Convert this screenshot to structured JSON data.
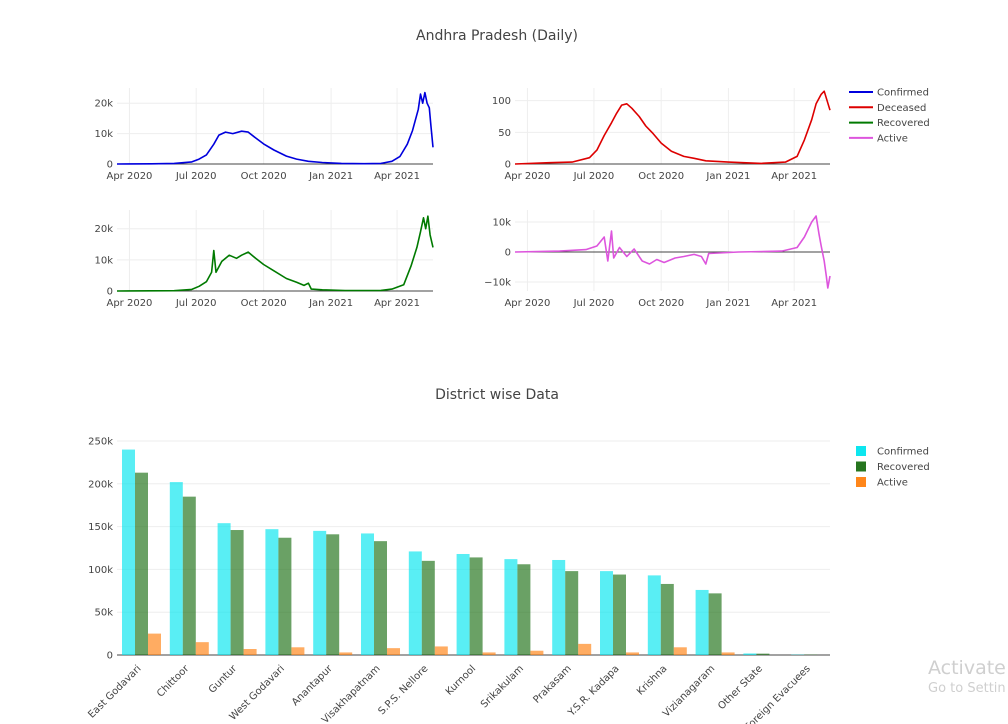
{
  "chart_data": [
    {
      "type": "line",
      "title": "Andhra Pradesh (Daily)",
      "x_range": [
        "2020-03-15",
        "2021-05-20"
      ],
      "x_ticks": [
        "Apr 2020",
        "Jul 2020",
        "Oct 2020",
        "Jan 2021",
        "Apr 2021"
      ],
      "legend": [
        "Confirmed",
        "Deceased",
        "Recovered",
        "Active"
      ],
      "colors": {
        "Confirmed": "#0000dd",
        "Deceased": "#dd0000",
        "Recovered": "#007a00",
        "Active": "#dd55dd"
      },
      "panels": [
        {
          "name": "Confirmed",
          "ylim": [
            0,
            25000
          ],
          "y_ticks": [
            "0",
            "10k",
            "20k"
          ],
          "y_tick_values": [
            0,
            10000,
            20000
          ],
          "points": [
            [
              "2020-03-15",
              0
            ],
            [
              "2020-05-01",
              60
            ],
            [
              "2020-06-01",
              200
            ],
            [
              "2020-06-25",
              700
            ],
            [
              "2020-07-05",
              1600
            ],
            [
              "2020-07-15",
              3000
            ],
            [
              "2020-07-25",
              6500
            ],
            [
              "2020-08-01",
              9500
            ],
            [
              "2020-08-10",
              10500
            ],
            [
              "2020-08-20",
              10000
            ],
            [
              "2020-09-01",
              10800
            ],
            [
              "2020-09-10",
              10500
            ],
            [
              "2020-09-20",
              8600
            ],
            [
              "2020-10-01",
              6600
            ],
            [
              "2020-10-15",
              4600
            ],
            [
              "2020-11-01",
              2600
            ],
            [
              "2020-11-15",
              1600
            ],
            [
              "2020-12-01",
              900
            ],
            [
              "2020-12-20",
              500
            ],
            [
              "2021-01-15",
              200
            ],
            [
              "2021-02-15",
              100
            ],
            [
              "2021-03-10",
              200
            ],
            [
              "2021-03-25",
              900
            ],
            [
              "2021-04-05",
              2500
            ],
            [
              "2021-04-15",
              6500
            ],
            [
              "2021-04-22",
              11000
            ],
            [
              "2021-04-30",
              18000
            ],
            [
              "2021-05-03",
              23000
            ],
            [
              "2021-05-06",
              20000
            ],
            [
              "2021-05-09",
              23500
            ],
            [
              "2021-05-12",
              20000
            ],
            [
              "2021-05-15",
              18500
            ],
            [
              "2021-05-17",
              13000
            ],
            [
              "2021-05-20",
              5500
            ]
          ]
        },
        {
          "name": "Deceased",
          "ylim": [
            0,
            120
          ],
          "y_ticks": [
            "0",
            "50",
            "100"
          ],
          "y_tick_values": [
            0,
            50,
            100
          ],
          "points": [
            [
              "2020-03-15",
              0
            ],
            [
              "2020-05-01",
              2
            ],
            [
              "2020-06-01",
              3
            ],
            [
              "2020-06-25",
              10
            ],
            [
              "2020-07-05",
              22
            ],
            [
              "2020-07-15",
              45
            ],
            [
              "2020-07-25",
              65
            ],
            [
              "2020-08-01",
              80
            ],
            [
              "2020-08-08",
              93
            ],
            [
              "2020-08-15",
              95
            ],
            [
              "2020-08-22",
              88
            ],
            [
              "2020-09-01",
              75
            ],
            [
              "2020-09-10",
              60
            ],
            [
              "2020-09-20",
              48
            ],
            [
              "2020-10-01",
              33
            ],
            [
              "2020-10-15",
              20
            ],
            [
              "2020-11-01",
              12
            ],
            [
              "2020-11-15",
              9
            ],
            [
              "2020-12-01",
              5
            ],
            [
              "2021-01-01",
              3
            ],
            [
              "2021-02-15",
              1
            ],
            [
              "2021-03-20",
              3
            ],
            [
              "2021-04-05",
              12
            ],
            [
              "2021-04-15",
              38
            ],
            [
              "2021-04-25",
              70
            ],
            [
              "2021-05-01",
              95
            ],
            [
              "2021-05-08",
              110
            ],
            [
              "2021-05-12",
              115
            ],
            [
              "2021-05-16",
              100
            ],
            [
              "2021-05-20",
              85
            ]
          ]
        },
        {
          "name": "Recovered",
          "ylim": [
            0,
            26000
          ],
          "y_ticks": [
            "0",
            "10k",
            "20k"
          ],
          "y_tick_values": [
            0,
            10000,
            20000
          ],
          "points": [
            [
              "2020-03-15",
              0
            ],
            [
              "2020-06-01",
              100
            ],
            [
              "2020-06-25",
              500
            ],
            [
              "2020-07-05",
              1500
            ],
            [
              "2020-07-15",
              3000
            ],
            [
              "2020-07-22",
              6000
            ],
            [
              "2020-07-25",
              13000
            ],
            [
              "2020-07-28",
              6000
            ],
            [
              "2020-08-05",
              9500
            ],
            [
              "2020-08-15",
              11500
            ],
            [
              "2020-08-25",
              10500
            ],
            [
              "2020-09-01",
              11500
            ],
            [
              "2020-09-10",
              12500
            ],
            [
              "2020-09-20",
              10500
            ],
            [
              "2020-10-01",
              8500
            ],
            [
              "2020-10-15",
              6500
            ],
            [
              "2020-11-01",
              4000
            ],
            [
              "2020-11-15",
              2800
            ],
            [
              "2020-11-25",
              1800
            ],
            [
              "2020-12-01",
              2500
            ],
            [
              "2020-12-05",
              600
            ],
            [
              "2020-12-20",
              400
            ],
            [
              "2021-01-20",
              150
            ],
            [
              "2021-03-10",
              200
            ],
            [
              "2021-03-25",
              600
            ],
            [
              "2021-04-10",
              2000
            ],
            [
              "2021-04-20",
              8000
            ],
            [
              "2021-04-28",
              14000
            ],
            [
              "2021-05-03",
              19000
            ],
            [
              "2021-05-07",
              23500
            ],
            [
              "2021-05-10",
              20000
            ],
            [
              "2021-05-13",
              24000
            ],
            [
              "2021-05-16",
              18000
            ],
            [
              "2021-05-20",
              14000
            ]
          ]
        },
        {
          "name": "Active",
          "ylim": [
            -13000,
            14000
          ],
          "y_ticks": [
            "−10k",
            "0",
            "10k"
          ],
          "y_tick_values": [
            -10000,
            0,
            10000
          ],
          "points": [
            [
              "2020-03-15",
              0
            ],
            [
              "2020-05-15",
              300
            ],
            [
              "2020-06-20",
              800
            ],
            [
              "2020-07-05",
              2000
            ],
            [
              "2020-07-15",
              5000
            ],
            [
              "2020-07-20",
              -3000
            ],
            [
              "2020-07-25",
              7000
            ],
            [
              "2020-07-28",
              -2000
            ],
            [
              "2020-08-05",
              1500
            ],
            [
              "2020-08-15",
              -1500
            ],
            [
              "2020-08-25",
              1000
            ],
            [
              "2020-09-05",
              -3000
            ],
            [
              "2020-09-15",
              -4000
            ],
            [
              "2020-09-25",
              -2500
            ],
            [
              "2020-10-05",
              -3500
            ],
            [
              "2020-10-20",
              -2000
            ],
            [
              "2020-11-01",
              -1500
            ],
            [
              "2020-11-15",
              -800
            ],
            [
              "2020-11-25",
              -1500
            ],
            [
              "2020-12-01",
              -4000
            ],
            [
              "2020-12-05",
              -500
            ],
            [
              "2021-01-15",
              0
            ],
            [
              "2021-03-15",
              300
            ],
            [
              "2021-04-05",
              1500
            ],
            [
              "2021-04-15",
              5000
            ],
            [
              "2021-04-25",
              10000
            ],
            [
              "2021-05-01",
              12000
            ],
            [
              "2021-05-05",
              6000
            ],
            [
              "2021-05-08",
              2000
            ],
            [
              "2021-05-12",
              -3000
            ],
            [
              "2021-05-15",
              -8000
            ],
            [
              "2021-05-17",
              -12000
            ],
            [
              "2021-05-20",
              -8000
            ]
          ]
        }
      ]
    },
    {
      "type": "bar",
      "title": "District wise Data",
      "ylim": [
        0,
        250000
      ],
      "y_ticks": [
        "0",
        "50k",
        "100k",
        "150k",
        "200k",
        "250k"
      ],
      "y_tick_values": [
        0,
        50000,
        100000,
        150000,
        200000,
        250000
      ],
      "categories": [
        "East Godavari",
        "Chittoor",
        "Guntur",
        "West Godavari",
        "Anantapur",
        "Visakhapatnam",
        "S.P.S. Nellore",
        "Kurnool",
        "Srikakulam",
        "Prakasam",
        "Y.S.R. Kadapa",
        "Krishna",
        "Vizianagaram",
        "Other State",
        "Foreign Evacuees"
      ],
      "series": [
        {
          "name": "Confirmed",
          "color": "#00e5ee",
          "values": [
            240000,
            202000,
            154000,
            147000,
            145000,
            142000,
            121000,
            118000,
            112000,
            111000,
            98000,
            93000,
            76000,
            1800,
            400
          ]
        },
        {
          "name": "Recovered",
          "color": "#1a6e12",
          "values": [
            213000,
            185000,
            146000,
            137000,
            141000,
            133000,
            110000,
            114000,
            106000,
            98000,
            94000,
            83000,
            72000,
            1600,
            400
          ]
        },
        {
          "name": "Active",
          "color": "#ff7f0e",
          "values": [
            25000,
            15000,
            7000,
            9000,
            3000,
            8000,
            10000,
            3000,
            5000,
            13000,
            3000,
            9000,
            3000,
            0,
            0
          ]
        }
      ],
      "legend": [
        "Confirmed",
        "Recovered",
        "Active"
      ]
    }
  ],
  "watermark": {
    "line1": "Activate W",
    "line2": "Go to Settin"
  }
}
